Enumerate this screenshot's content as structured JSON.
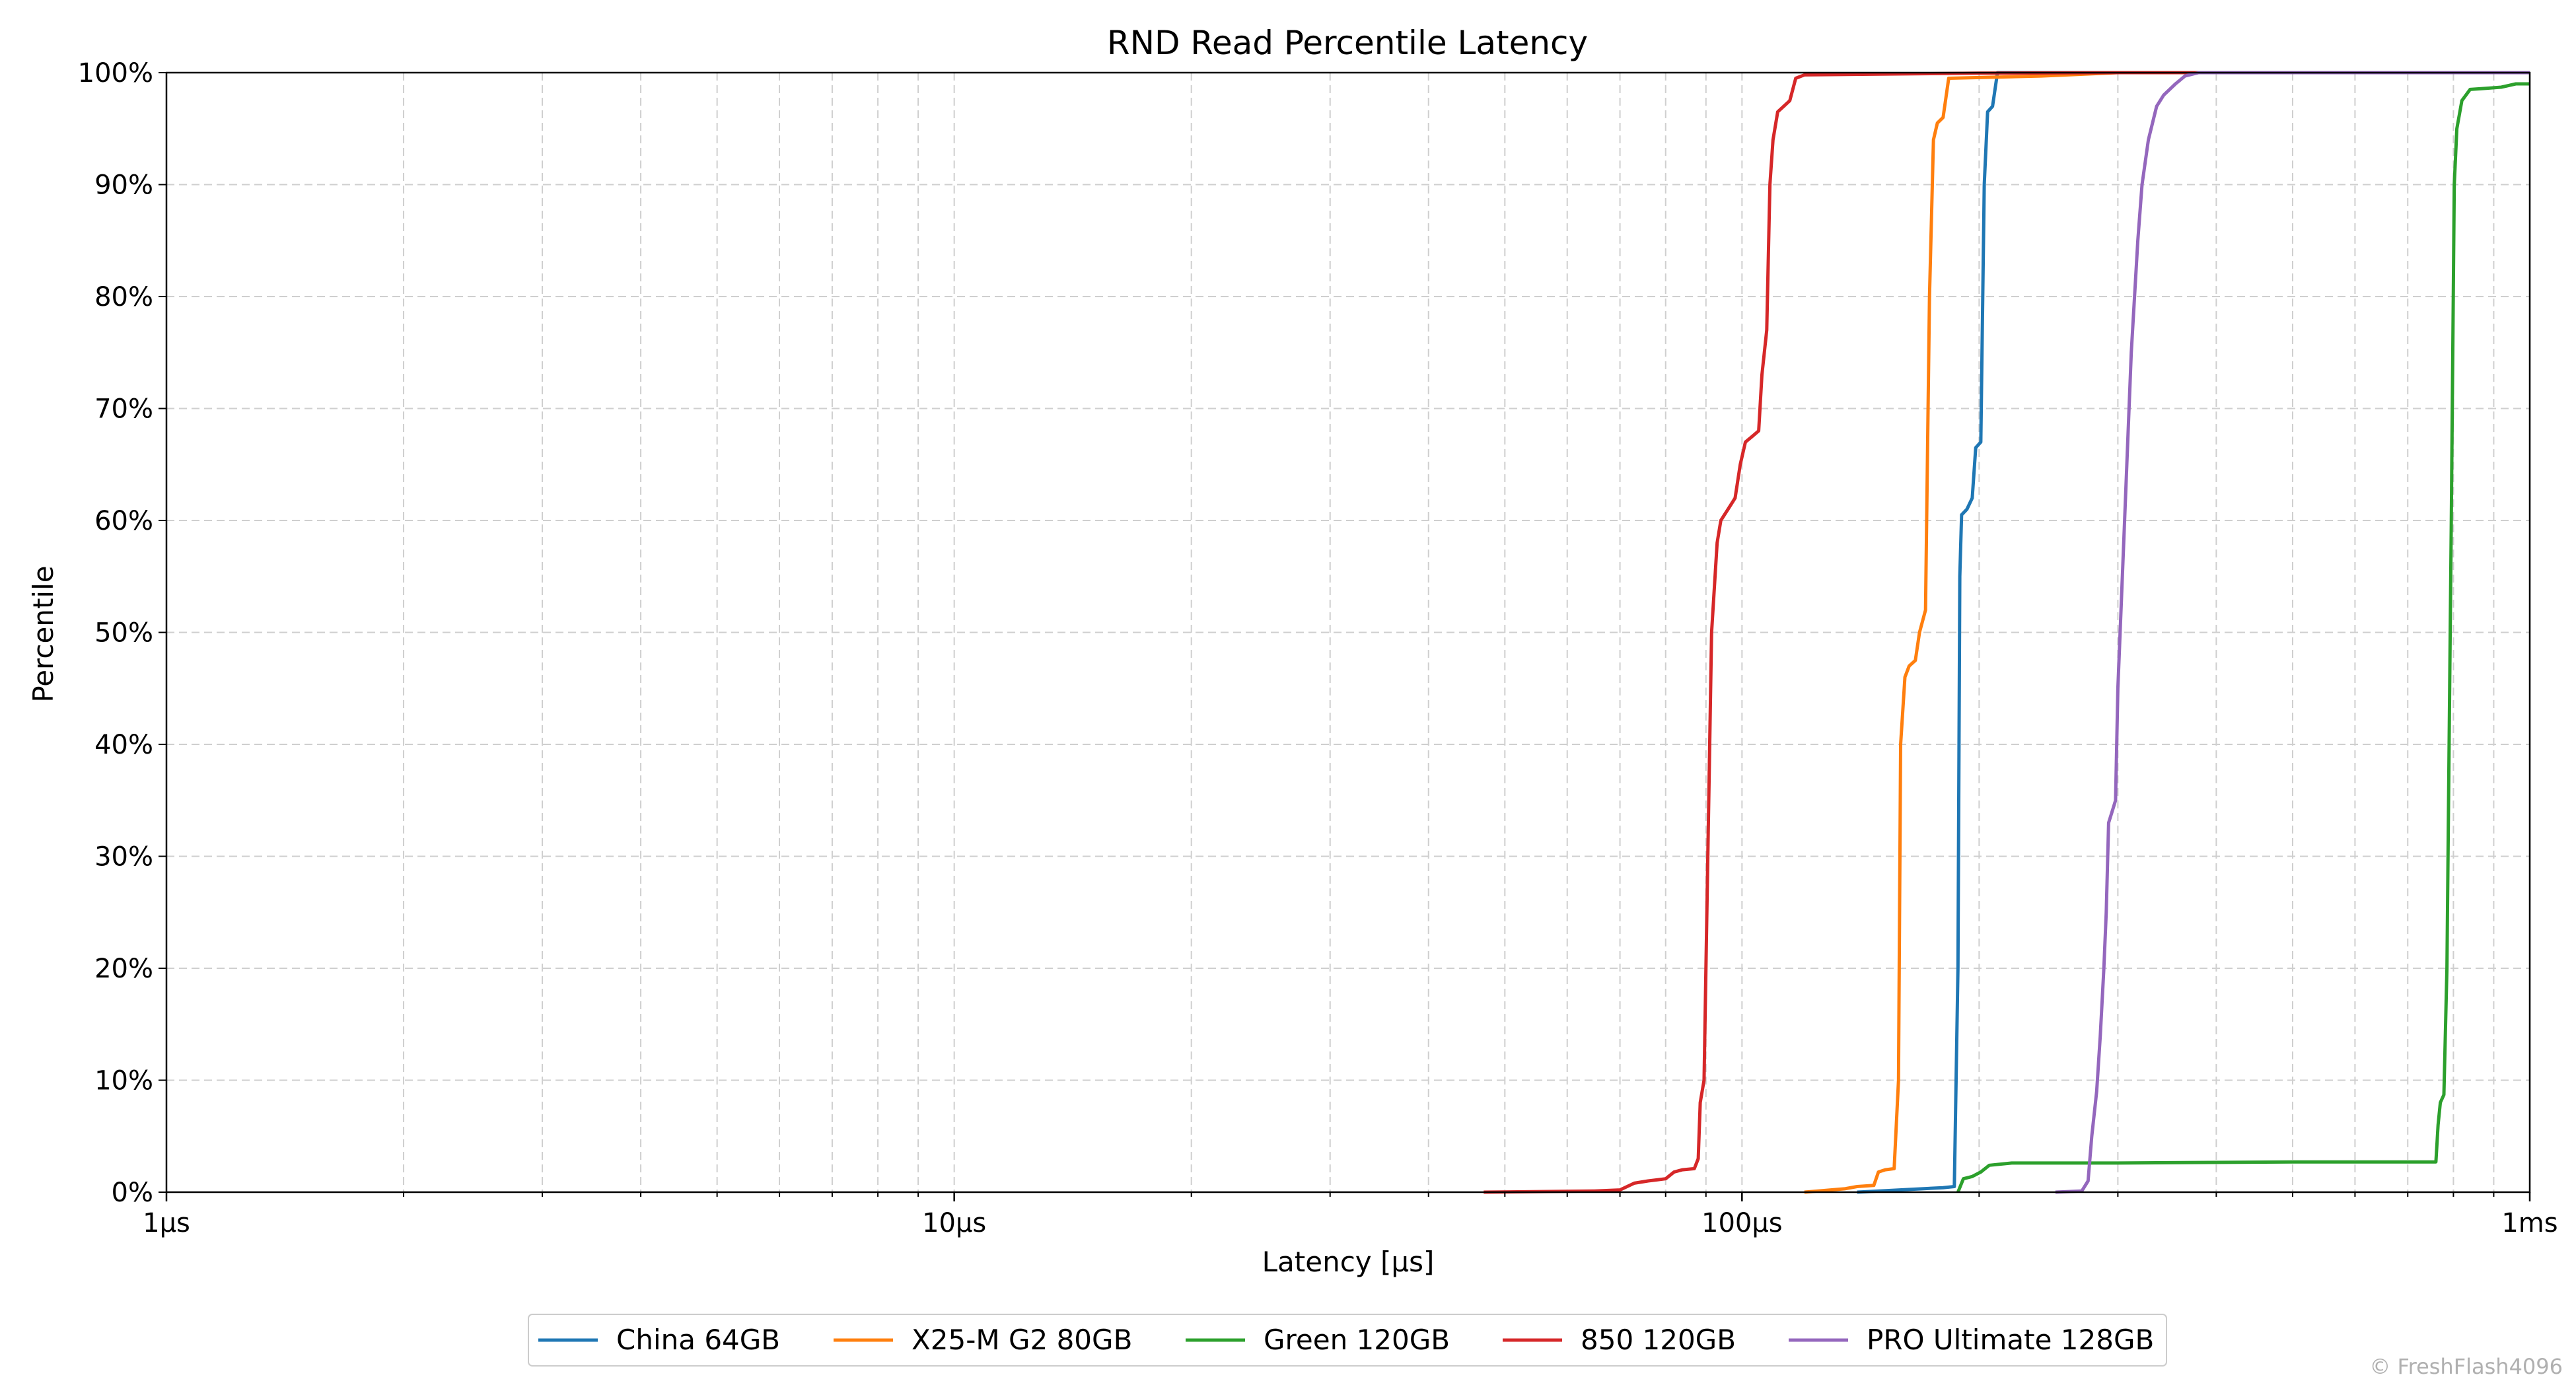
{
  "chart_data": {
    "type": "line",
    "title": "RND Read Percentile Latency",
    "xlabel": "Latency [μs]",
    "ylabel": "Percentile",
    "xscale": "log",
    "xlim": [
      1,
      1000
    ],
    "ylim": [
      0,
      100
    ],
    "x_ticks": [
      {
        "value": 1,
        "label": "1μs"
      },
      {
        "value": 10,
        "label": "10μs"
      },
      {
        "value": 100,
        "label": "100μs"
      },
      {
        "value": 1000,
        "label": "1ms"
      }
    ],
    "y_ticks": [
      {
        "value": 0,
        "label": "0%"
      },
      {
        "value": 10,
        "label": "10%"
      },
      {
        "value": 20,
        "label": "20%"
      },
      {
        "value": 30,
        "label": "30%"
      },
      {
        "value": 40,
        "label": "40%"
      },
      {
        "value": 50,
        "label": "50%"
      },
      {
        "value": 60,
        "label": "60%"
      },
      {
        "value": 70,
        "label": "70%"
      },
      {
        "value": 80,
        "label": "80%"
      },
      {
        "value": 90,
        "label": "90%"
      },
      {
        "value": 100,
        "label": "100%"
      }
    ],
    "grid": true,
    "legend_position": "bottom-center",
    "series": [
      {
        "name": "China 64GB",
        "color": "#1f77b4",
        "points": [
          [
            140,
            0
          ],
          [
            180,
            0.4
          ],
          [
            186,
            0.5
          ],
          [
            188,
            20
          ],
          [
            189,
            55
          ],
          [
            190,
            60.5
          ],
          [
            193,
            61
          ],
          [
            196,
            62
          ],
          [
            198,
            66.5
          ],
          [
            201,
            67
          ],
          [
            203,
            90
          ],
          [
            205,
            96.5
          ],
          [
            208,
            97
          ],
          [
            211,
            100
          ],
          [
            1000,
            100
          ]
        ]
      },
      {
        "name": "X25-M G2 80GB",
        "color": "#ff7f0e",
        "points": [
          [
            120,
            0
          ],
          [
            135,
            0.3
          ],
          [
            140,
            0.5
          ],
          [
            147,
            0.6
          ],
          [
            149,
            1.8
          ],
          [
            152,
            2
          ],
          [
            156,
            2.1
          ],
          [
            158,
            10
          ],
          [
            159,
            40
          ],
          [
            161,
            46
          ],
          [
            163,
            47
          ],
          [
            166,
            47.5
          ],
          [
            168,
            50
          ],
          [
            171,
            52
          ],
          [
            173,
            80
          ],
          [
            175,
            94
          ],
          [
            177,
            95.5
          ],
          [
            180,
            96
          ],
          [
            183,
            99.5
          ],
          [
            240,
            99.7
          ],
          [
            300,
            100
          ],
          [
            1000,
            100
          ]
        ]
      },
      {
        "name": "Green 120GB",
        "color": "#2ca02c",
        "points": [
          [
            188,
            0
          ],
          [
            191,
            1.2
          ],
          [
            196,
            1.4
          ],
          [
            201,
            1.8
          ],
          [
            206,
            2.4
          ],
          [
            220,
            2.6
          ],
          [
            300,
            2.6
          ],
          [
            500,
            2.7
          ],
          [
            740,
            2.7
          ],
          [
            760,
            2.7
          ],
          [
            765,
            6
          ],
          [
            770,
            8
          ],
          [
            778,
            8.7
          ],
          [
            785,
            20
          ],
          [
            795,
            60
          ],
          [
            802,
            90
          ],
          [
            808,
            95
          ],
          [
            820,
            97.5
          ],
          [
            840,
            98.5
          ],
          [
            880,
            98.6
          ],
          [
            920,
            98.7
          ],
          [
            960,
            99
          ],
          [
            1000,
            99
          ]
        ]
      },
      {
        "name": "850 120GB",
        "color": "#d62728",
        "points": [
          [
            47,
            0
          ],
          [
            65,
            0.1
          ],
          [
            70,
            0.2
          ],
          [
            73,
            0.8
          ],
          [
            76,
            1
          ],
          [
            78,
            1.1
          ],
          [
            80,
            1.2
          ],
          [
            82,
            1.8
          ],
          [
            84,
            2
          ],
          [
            87,
            2.1
          ],
          [
            88,
            3
          ],
          [
            88.5,
            8
          ],
          [
            89.5,
            10
          ],
          [
            90.5,
            30
          ],
          [
            91.5,
            50
          ],
          [
            93,
            58
          ],
          [
            94,
            60
          ],
          [
            96,
            61
          ],
          [
            98,
            62
          ],
          [
            99.5,
            65
          ],
          [
            101,
            67
          ],
          [
            103,
            67.5
          ],
          [
            105,
            68
          ],
          [
            106,
            73
          ],
          [
            107.5,
            77
          ],
          [
            108.5,
            90
          ],
          [
            109.5,
            94
          ],
          [
            111,
            96.5
          ],
          [
            113,
            97
          ],
          [
            115,
            97.5
          ],
          [
            117,
            99.5
          ],
          [
            120,
            99.8
          ],
          [
            200,
            99.95
          ],
          [
            300,
            100
          ],
          [
            1000,
            100
          ]
        ]
      },
      {
        "name": "PRO Ultimate 128GB",
        "color": "#9467bd",
        "points": [
          [
            250,
            0
          ],
          [
            270,
            0.1
          ],
          [
            275,
            1
          ],
          [
            278,
            5
          ],
          [
            282,
            9
          ],
          [
            285,
            14
          ],
          [
            288,
            20
          ],
          [
            290,
            25
          ],
          [
            292,
            33
          ],
          [
            295,
            34
          ],
          [
            298,
            35
          ],
          [
            300,
            45
          ],
          [
            306,
            60
          ],
          [
            312,
            75
          ],
          [
            318,
            85
          ],
          [
            322,
            90
          ],
          [
            328,
            94
          ],
          [
            336,
            97
          ],
          [
            343,
            98
          ],
          [
            355,
            99
          ],
          [
            365,
            99.7
          ],
          [
            380,
            100
          ],
          [
            1000,
            100
          ]
        ]
      }
    ],
    "watermark": "© FreshFlash4096"
  }
}
